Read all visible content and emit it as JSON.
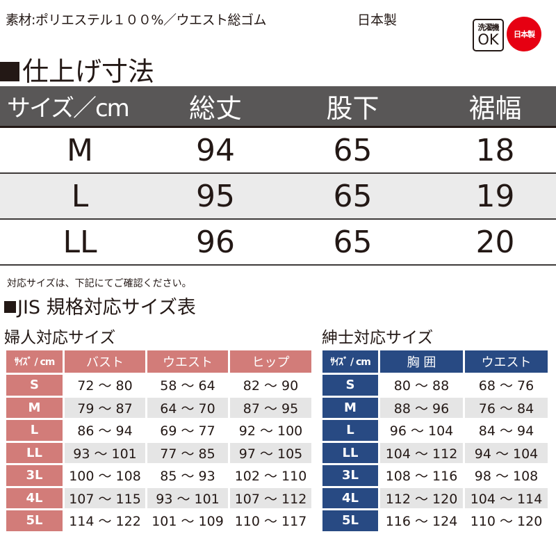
{
  "header": {
    "material": "素材:ポリエステル１００%／ウエスト総ゴム",
    "made_in": "日本製"
  },
  "badges": {
    "washable_line1": "洗濯機",
    "washable_line2": "OK",
    "made_in_japan": "日本製",
    "colors": {
      "japan_badge": "#e60012"
    }
  },
  "finished_dimensions": {
    "title": "仕上げ寸法",
    "headers": [
      "サイズ／cm",
      "総丈",
      "股下",
      "裾幅"
    ],
    "rows": [
      [
        "M",
        "94",
        "65",
        "18"
      ],
      [
        "L",
        "95",
        "65",
        "19"
      ],
      [
        "LL",
        "96",
        "65",
        "20"
      ]
    ],
    "colors": {
      "header_bg": "#595757",
      "alt_row": "#ebebeb"
    }
  },
  "note": "対応サイズは、下記にてご確認ください。",
  "jis": {
    "title": "JIS 規格対応サイズ表",
    "women": {
      "title": "婦人対応サイズ",
      "headers": [
        "ｻｲｽﾞ / cm",
        "バスト",
        "ウエスト",
        "ヒップ"
      ],
      "rows": [
        [
          "S",
          "72 ～ 80",
          "58 ～ 64",
          "82 ～ 90"
        ],
        [
          "M",
          "79 ～ 87",
          "64 ～ 70",
          "87 ～ 95"
        ],
        [
          "L",
          "86 ～ 94",
          "69 ～ 77",
          "92 ～ 100"
        ],
        [
          "LL",
          "93 ～ 101",
          "77 ～ 85",
          "97 ～ 105"
        ],
        [
          "3L",
          "100 ～ 108",
          "85 ～ 93",
          "102 ～ 110"
        ],
        [
          "4L",
          "107 ～ 115",
          "93 ～ 101",
          "107 ～ 112"
        ],
        [
          "5L",
          "114 ～ 122",
          "101 ～ 109",
          "110 ～ 117"
        ]
      ],
      "color": "#d27c79"
    },
    "men": {
      "title": "紳士対応サイズ",
      "headers": [
        "ｻｲｽﾞ / cm",
        "胸 囲",
        "ウエスト"
      ],
      "rows": [
        [
          "S",
          "80 ～ 88",
          "68 ～ 76"
        ],
        [
          "M",
          "88 ～ 96",
          "76 ～ 84"
        ],
        [
          "L",
          "96 ～ 104",
          "84 ～ 94"
        ],
        [
          "LL",
          "104 ～ 112",
          "94 ～ 104"
        ],
        [
          "3L",
          "108 ～ 116",
          "98 ～ 108"
        ],
        [
          "4L",
          "112 ～ 120",
          "104 ～ 114"
        ],
        [
          "5L",
          "116 ～ 124",
          "110 ～ 120"
        ]
      ],
      "color": "#284a83"
    }
  }
}
